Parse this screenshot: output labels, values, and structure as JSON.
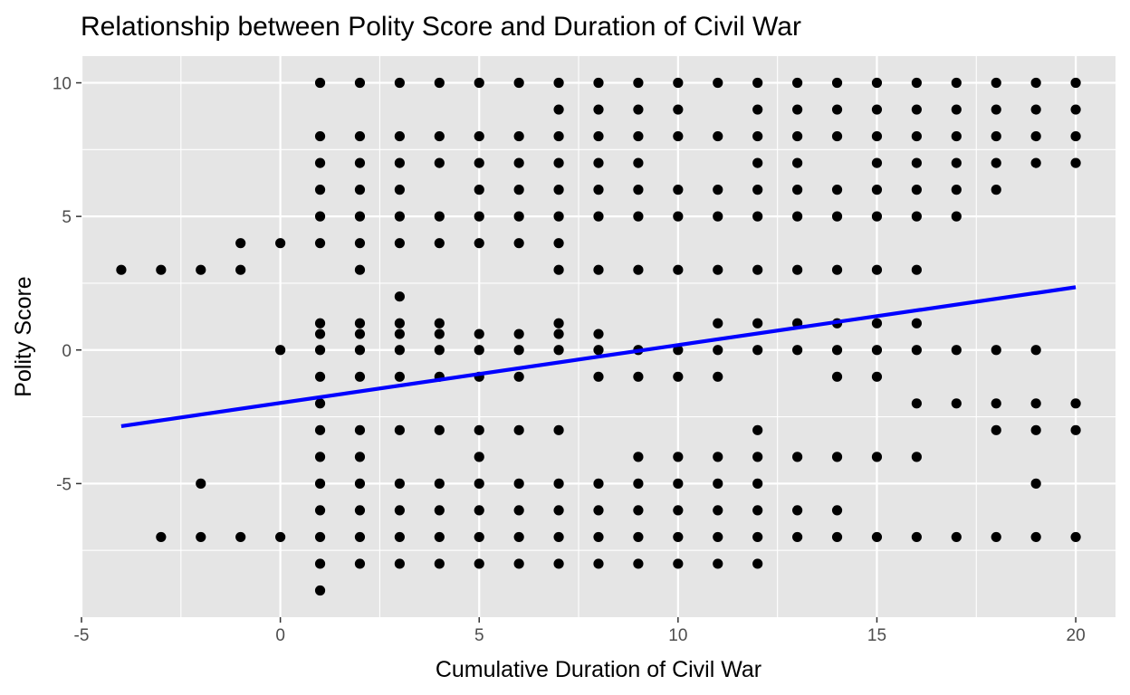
{
  "chart_data": {
    "type": "scatter",
    "title": "Relationship between Polity Score and Duration of Civil War",
    "xlabel": "Cumulative Duration of Civil War",
    "ylabel": "Polity Score",
    "xlim": [
      -5,
      21
    ],
    "ylim": [
      -10,
      11
    ],
    "x_ticks": [
      -5,
      0,
      5,
      10,
      15,
      20
    ],
    "y_ticks": [
      -5,
      0,
      5,
      10
    ],
    "x_tick_labels": [
      "-5",
      "0",
      "5",
      "10",
      "15",
      "20"
    ],
    "y_tick_labels": [
      "-5",
      "0",
      "5",
      "10"
    ],
    "grid": true,
    "colors": {
      "panel_background": "#e5e5e5",
      "grid": "#ffffff",
      "points": "#000000",
      "fit_line": "#0000ff"
    },
    "fit_line": {
      "x": [
        -4,
        20
      ],
      "y": [
        -2.85,
        2.35
      ]
    },
    "points": [
      [
        -4,
        3
      ],
      [
        -3,
        3
      ],
      [
        -3,
        -7
      ],
      [
        -2,
        3
      ],
      [
        -2,
        -5
      ],
      [
        -2,
        -7
      ],
      [
        -1,
        4
      ],
      [
        -1,
        3
      ],
      [
        -1,
        -7
      ],
      [
        0,
        4
      ],
      [
        0,
        0
      ],
      [
        0,
        -7
      ],
      [
        1,
        10
      ],
      [
        1,
        8
      ],
      [
        1,
        7
      ],
      [
        1,
        6
      ],
      [
        1,
        5
      ],
      [
        1,
        4
      ],
      [
        1,
        1
      ],
      [
        1,
        0.6
      ],
      [
        1,
        0
      ],
      [
        1,
        -1
      ],
      [
        1,
        -2
      ],
      [
        1,
        -3
      ],
      [
        1,
        -4
      ],
      [
        1,
        -5
      ],
      [
        1,
        -6
      ],
      [
        1,
        -7
      ],
      [
        1,
        -8
      ],
      [
        1,
        -9
      ],
      [
        2,
        10
      ],
      [
        2,
        8
      ],
      [
        2,
        7
      ],
      [
        2,
        6
      ],
      [
        2,
        5
      ],
      [
        2,
        4
      ],
      [
        2,
        3
      ],
      [
        2,
        1
      ],
      [
        2,
        0.6
      ],
      [
        2,
        0
      ],
      [
        2,
        -1
      ],
      [
        2,
        -3
      ],
      [
        2,
        -4
      ],
      [
        2,
        -5
      ],
      [
        2,
        -6
      ],
      [
        2,
        -7
      ],
      [
        2,
        -8
      ],
      [
        3,
        10
      ],
      [
        3,
        8
      ],
      [
        3,
        7
      ],
      [
        3,
        6
      ],
      [
        3,
        5
      ],
      [
        3,
        4
      ],
      [
        3,
        2
      ],
      [
        3,
        1
      ],
      [
        3,
        0.6
      ],
      [
        3,
        0
      ],
      [
        3,
        -1
      ],
      [
        3,
        -3
      ],
      [
        3,
        -5
      ],
      [
        3,
        -6
      ],
      [
        3,
        -7
      ],
      [
        3,
        -8
      ],
      [
        4,
        10
      ],
      [
        4,
        8
      ],
      [
        4,
        7
      ],
      [
        4,
        5
      ],
      [
        4,
        4
      ],
      [
        4,
        1
      ],
      [
        4,
        0.6
      ],
      [
        4,
        0
      ],
      [
        4,
        -1
      ],
      [
        4,
        -3
      ],
      [
        4,
        -5
      ],
      [
        4,
        -6
      ],
      [
        4,
        -7
      ],
      [
        4,
        -8
      ],
      [
        5,
        10
      ],
      [
        5,
        8
      ],
      [
        5,
        7
      ],
      [
        5,
        6
      ],
      [
        5,
        5
      ],
      [
        5,
        4
      ],
      [
        5,
        0.6
      ],
      [
        5,
        0
      ],
      [
        5,
        -1
      ],
      [
        5,
        -3
      ],
      [
        5,
        -4
      ],
      [
        5,
        -5
      ],
      [
        5,
        -6
      ],
      [
        5,
        -7
      ],
      [
        5,
        -8
      ],
      [
        6,
        10
      ],
      [
        6,
        8
      ],
      [
        6,
        7
      ],
      [
        6,
        6
      ],
      [
        6,
        5
      ],
      [
        6,
        4
      ],
      [
        6,
        0.6
      ],
      [
        6,
        0
      ],
      [
        6,
        -1
      ],
      [
        6,
        -3
      ],
      [
        6,
        -5
      ],
      [
        6,
        -6
      ],
      [
        6,
        -7
      ],
      [
        6,
        -8
      ],
      [
        7,
        10
      ],
      [
        7,
        9
      ],
      [
        7,
        8
      ],
      [
        7,
        7
      ],
      [
        7,
        6
      ],
      [
        7,
        5
      ],
      [
        7,
        4
      ],
      [
        7,
        3
      ],
      [
        7,
        1
      ],
      [
        7,
        0.6
      ],
      [
        7,
        0
      ],
      [
        7,
        -3
      ],
      [
        7,
        -5
      ],
      [
        7,
        -6
      ],
      [
        7,
        -7
      ],
      [
        7,
        -8
      ],
      [
        8,
        10
      ],
      [
        8,
        9
      ],
      [
        8,
        8
      ],
      [
        8,
        7
      ],
      [
        8,
        6
      ],
      [
        8,
        5
      ],
      [
        8,
        3
      ],
      [
        8,
        0.6
      ],
      [
        8,
        0
      ],
      [
        8,
        -1
      ],
      [
        8,
        -5
      ],
      [
        8,
        -6
      ],
      [
        8,
        -7
      ],
      [
        8,
        -8
      ],
      [
        9,
        10
      ],
      [
        9,
        9
      ],
      [
        9,
        8
      ],
      [
        9,
        7
      ],
      [
        9,
        6
      ],
      [
        9,
        5
      ],
      [
        9,
        3
      ],
      [
        9,
        0
      ],
      [
        9,
        -1
      ],
      [
        9,
        -4
      ],
      [
        9,
        -5
      ],
      [
        9,
        -6
      ],
      [
        9,
        -7
      ],
      [
        9,
        -8
      ],
      [
        10,
        10
      ],
      [
        10,
        9
      ],
      [
        10,
        8
      ],
      [
        10,
        6
      ],
      [
        10,
        5
      ],
      [
        10,
        3
      ],
      [
        10,
        0
      ],
      [
        10,
        -1
      ],
      [
        10,
        -4
      ],
      [
        10,
        -5
      ],
      [
        10,
        -6
      ],
      [
        10,
        -7
      ],
      [
        10,
        -8
      ],
      [
        11,
        10
      ],
      [
        11,
        8
      ],
      [
        11,
        6
      ],
      [
        11,
        5
      ],
      [
        11,
        3
      ],
      [
        11,
        1
      ],
      [
        11,
        0
      ],
      [
        11,
        -1
      ],
      [
        11,
        -4
      ],
      [
        11,
        -5
      ],
      [
        11,
        -6
      ],
      [
        11,
        -7
      ],
      [
        11,
        -8
      ],
      [
        12,
        10
      ],
      [
        12,
        9
      ],
      [
        12,
        8
      ],
      [
        12,
        7
      ],
      [
        12,
        6
      ],
      [
        12,
        5
      ],
      [
        12,
        3
      ],
      [
        12,
        1
      ],
      [
        12,
        0
      ],
      [
        12,
        -3
      ],
      [
        12,
        -4
      ],
      [
        12,
        -5
      ],
      [
        12,
        -6
      ],
      [
        12,
        -7
      ],
      [
        12,
        -8
      ],
      [
        13,
        10
      ],
      [
        13,
        9
      ],
      [
        13,
        8
      ],
      [
        13,
        7
      ],
      [
        13,
        6
      ],
      [
        13,
        5
      ],
      [
        13,
        3
      ],
      [
        13,
        1
      ],
      [
        13,
        0
      ],
      [
        13,
        -4
      ],
      [
        13,
        -6
      ],
      [
        13,
        -7
      ],
      [
        14,
        10
      ],
      [
        14,
        9
      ],
      [
        14,
        8
      ],
      [
        14,
        6
      ],
      [
        14,
        5
      ],
      [
        14,
        3
      ],
      [
        14,
        1
      ],
      [
        14,
        0
      ],
      [
        14,
        -1
      ],
      [
        14,
        -4
      ],
      [
        14,
        -6
      ],
      [
        14,
        -7
      ],
      [
        15,
        10
      ],
      [
        15,
        9
      ],
      [
        15,
        8
      ],
      [
        15,
        7
      ],
      [
        15,
        6
      ],
      [
        15,
        5
      ],
      [
        15,
        3
      ],
      [
        15,
        1
      ],
      [
        15,
        0
      ],
      [
        15,
        -1
      ],
      [
        15,
        -4
      ],
      [
        15,
        -7
      ],
      [
        16,
        10
      ],
      [
        16,
        9
      ],
      [
        16,
        8
      ],
      [
        16,
        7
      ],
      [
        16,
        6
      ],
      [
        16,
        5
      ],
      [
        16,
        3
      ],
      [
        16,
        1
      ],
      [
        16,
        0
      ],
      [
        16,
        -2
      ],
      [
        16,
        -4
      ],
      [
        16,
        -7
      ],
      [
        17,
        10
      ],
      [
        17,
        9
      ],
      [
        17,
        8
      ],
      [
        17,
        7
      ],
      [
        17,
        6
      ],
      [
        17,
        5
      ],
      [
        17,
        0
      ],
      [
        17,
        -2
      ],
      [
        17,
        -7
      ],
      [
        18,
        10
      ],
      [
        18,
        9
      ],
      [
        18,
        8
      ],
      [
        18,
        7
      ],
      [
        18,
        6
      ],
      [
        18,
        0
      ],
      [
        18,
        -2
      ],
      [
        18,
        -3
      ],
      [
        18,
        -7
      ],
      [
        19,
        10
      ],
      [
        19,
        9
      ],
      [
        19,
        8
      ],
      [
        19,
        7
      ],
      [
        19,
        0
      ],
      [
        19,
        -2
      ],
      [
        19,
        -3
      ],
      [
        19,
        -5
      ],
      [
        19,
        -7
      ],
      [
        20,
        10
      ],
      [
        20,
        9
      ],
      [
        20,
        8
      ],
      [
        20,
        7
      ],
      [
        20,
        -2
      ],
      [
        20,
        -3
      ],
      [
        20,
        -7
      ]
    ]
  }
}
